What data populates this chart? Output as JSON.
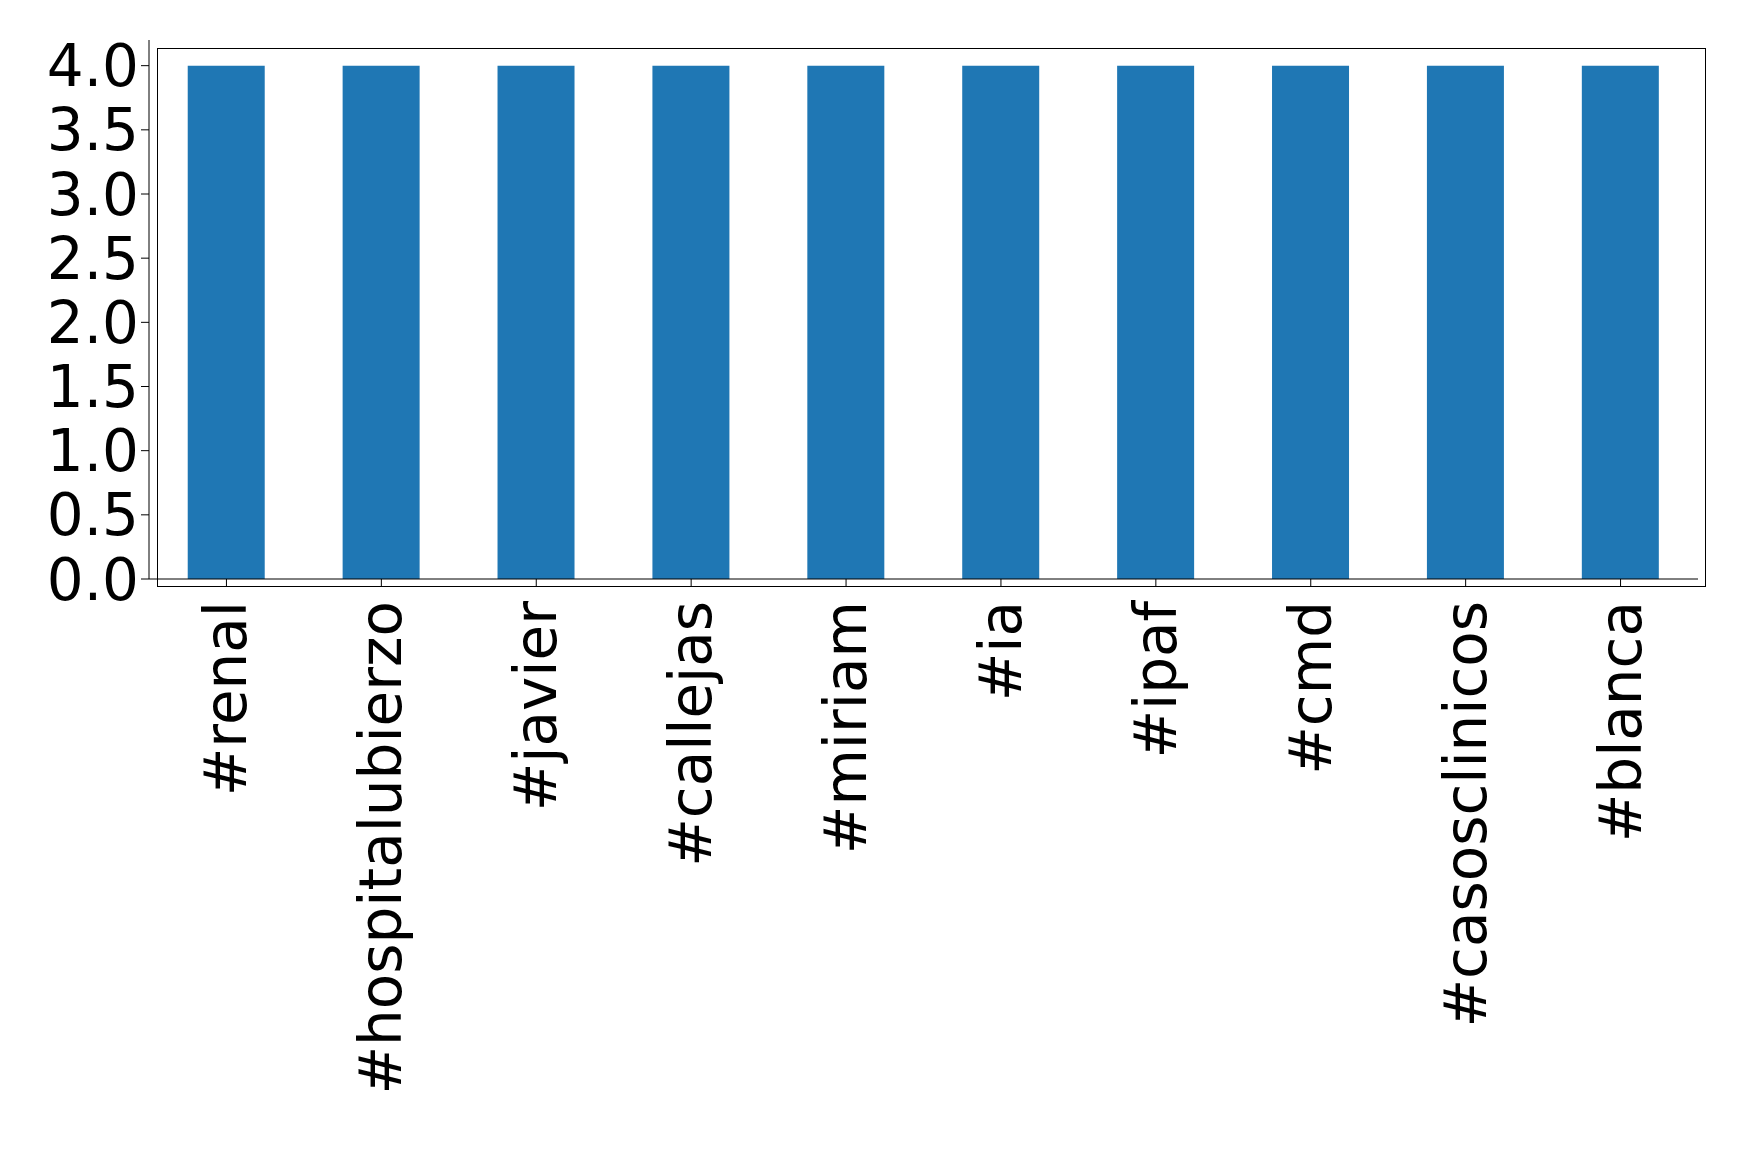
{
  "chart_data": {
    "type": "bar",
    "categories": [
      "#renal",
      "#hospitalubierzo",
      "#javier",
      "#callejas",
      "#miriam",
      "#ia",
      "#ipaf",
      "#cmd",
      "#casosclinicos",
      "#blanca"
    ],
    "values": [
      4,
      4,
      4,
      4,
      4,
      4,
      4,
      4,
      4,
      4
    ],
    "color": "#1f77b4",
    "ylim": [
      0,
      4.2
    ],
    "yticks": [
      {
        "value": 0,
        "label": "0.0"
      },
      {
        "value": 0.5,
        "label": "0.5"
      },
      {
        "value": 1,
        "label": "1.0"
      },
      {
        "value": 1.5,
        "label": "1.5"
      },
      {
        "value": 2,
        "label": "2.0"
      },
      {
        "value": 2.5,
        "label": "2.5"
      },
      {
        "value": 3,
        "label": "3.0"
      },
      {
        "value": 3.5,
        "label": "3.5"
      },
      {
        "value": 4,
        "label": "4.0"
      }
    ],
    "grid": false
  }
}
